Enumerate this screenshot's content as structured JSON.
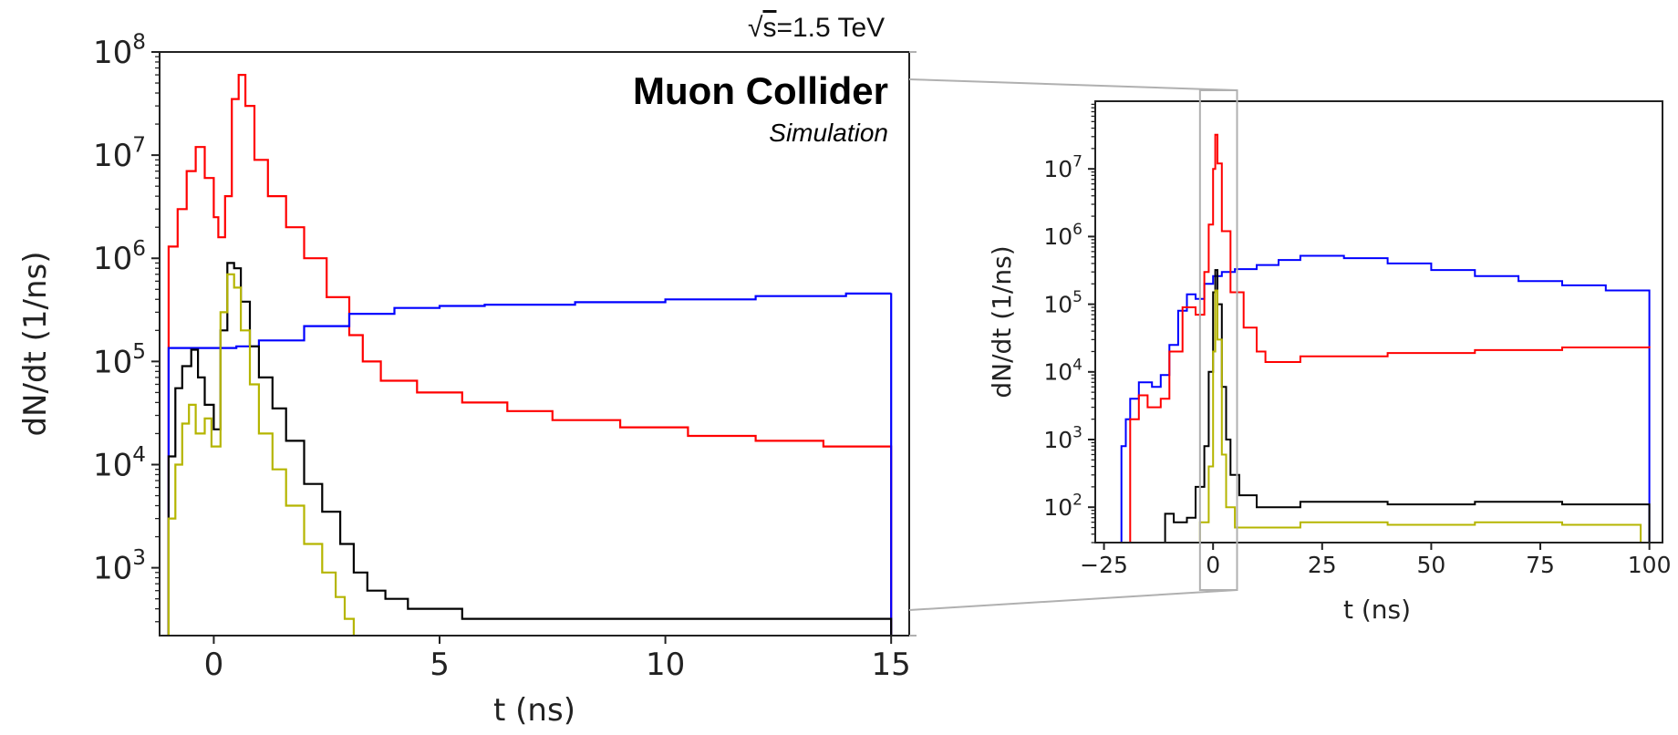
{
  "header": {
    "energy_prefix": "√",
    "energy_s": "s",
    "energy_value": "=1.5 TeV",
    "title": "Muon Collider",
    "subtitle": "Simulation"
  },
  "colors": {
    "red": "#ff0000",
    "blue": "#0000ff",
    "black": "#000000",
    "yellow": "#b5b500",
    "zoom_box": "#b0b0b0"
  },
  "chart_data": [
    {
      "type": "line",
      "panel": "left",
      "xlabel": "t (ns)",
      "ylabel": "dN/dt (1/ns)",
      "yscale": "log",
      "xlim": [
        -1.2,
        15.4
      ],
      "ylim": [
        220,
        100000000
      ],
      "xticks": [
        0,
        5,
        10,
        15
      ],
      "xtick_labels": [
        "0",
        "5",
        "10",
        "15"
      ],
      "yticks": [
        1000,
        10000,
        100000,
        1000000,
        10000000,
        100000000
      ],
      "ytick_labels": [
        {
          "base": "10",
          "exp": "3"
        },
        {
          "base": "10",
          "exp": "4"
        },
        {
          "base": "10",
          "exp": "5"
        },
        {
          "base": "10",
          "exp": "6"
        },
        {
          "base": "10",
          "exp": "7"
        },
        {
          "base": "10",
          "exp": "8"
        }
      ],
      "series": [
        {
          "name": "red",
          "color": "red",
          "points": [
            [
              -1,
              220
            ],
            [
              -1,
              1300000
            ],
            [
              -0.8,
              3000000
            ],
            [
              -0.6,
              7000000
            ],
            [
              -0.4,
              12000000
            ],
            [
              -0.2,
              6000000
            ],
            [
              0,
              2500000
            ],
            [
              0.1,
              1600000
            ],
            [
              0.25,
              4000000
            ],
            [
              0.4,
              35000000
            ],
            [
              0.55,
              60000000
            ],
            [
              0.7,
              30000000
            ],
            [
              0.9,
              9000000
            ],
            [
              1.2,
              4000000
            ],
            [
              1.6,
              2000000
            ],
            [
              2.0,
              1000000
            ],
            [
              2.5,
              420000
            ],
            [
              3.0,
              180000
            ],
            [
              3.3,
              100000
            ],
            [
              3.7,
              65000
            ],
            [
              4.5,
              50000
            ],
            [
              5.5,
              40000
            ],
            [
              6.5,
              33000
            ],
            [
              7.5,
              27000
            ],
            [
              9,
              23000
            ],
            [
              10.5,
              19000
            ],
            [
              12,
              17000
            ],
            [
              13.5,
              15000
            ],
            [
              15,
              14000
            ],
            [
              15,
              220
            ]
          ]
        },
        {
          "name": "blue",
          "color": "blue",
          "points": [
            [
              -1,
              220
            ],
            [
              -1,
              10000
            ],
            [
              -1,
              135000
            ],
            [
              0,
              135000
            ],
            [
              0.5,
              140000
            ],
            [
              1,
              160000
            ],
            [
              2,
              220000
            ],
            [
              3,
              290000
            ],
            [
              4,
              330000
            ],
            [
              5,
              345000
            ],
            [
              6,
              355000
            ],
            [
              8,
              375000
            ],
            [
              10,
              400000
            ],
            [
              12,
              430000
            ],
            [
              14,
              455000
            ],
            [
              15,
              460000
            ],
            [
              15,
              220
            ]
          ]
        },
        {
          "name": "black",
          "color": "black",
          "points": [
            [
              -1,
              220
            ],
            [
              -1,
              12000
            ],
            [
              -0.85,
              55000
            ],
            [
              -0.7,
              90000
            ],
            [
              -0.5,
              130000
            ],
            [
              -0.35,
              70000
            ],
            [
              -0.2,
              38000
            ],
            [
              0,
              22000
            ],
            [
              0.15,
              200000
            ],
            [
              0.3,
              900000
            ],
            [
              0.45,
              800000
            ],
            [
              0.6,
              380000
            ],
            [
              0.8,
              140000
            ],
            [
              1.0,
              70000
            ],
            [
              1.3,
              35000
            ],
            [
              1.6,
              17000
            ],
            [
              2.0,
              6500
            ],
            [
              2.4,
              3500
            ],
            [
              2.8,
              1700
            ],
            [
              3.1,
              900
            ],
            [
              3.4,
              600
            ],
            [
              3.8,
              500
            ],
            [
              4.3,
              400
            ],
            [
              5.5,
              320
            ],
            [
              15,
              300
            ],
            [
              15,
              220
            ]
          ]
        },
        {
          "name": "yellow",
          "color": "yellow",
          "points": [
            [
              -1,
              220
            ],
            [
              -1,
              3000
            ],
            [
              -0.85,
              10000
            ],
            [
              -0.7,
              25000
            ],
            [
              -0.55,
              38000
            ],
            [
              -0.4,
              20000
            ],
            [
              -0.2,
              28000
            ],
            [
              -0.05,
              15000
            ],
            [
              0.15,
              300000
            ],
            [
              0.3,
              700000
            ],
            [
              0.45,
              520000
            ],
            [
              0.6,
              200000
            ],
            [
              0.8,
              60000
            ],
            [
              1.0,
              20000
            ],
            [
              1.3,
              9000
            ],
            [
              1.6,
              4000
            ],
            [
              2.0,
              1700
            ],
            [
              2.4,
              900
            ],
            [
              2.7,
              520
            ],
            [
              2.9,
              320
            ],
            [
              3.1,
              220
            ]
          ]
        }
      ]
    },
    {
      "type": "line",
      "panel": "right",
      "xlabel": "t (ns)",
      "ylabel": "dN/dt (1/ns)",
      "yscale": "log",
      "xlim": [
        -27,
        103
      ],
      "ylim": [
        30,
        100000000
      ],
      "xticks": [
        -25,
        0,
        25,
        50,
        75,
        100
      ],
      "xtick_labels": [
        "−25",
        "0",
        "25",
        "50",
        "75",
        "100"
      ],
      "yticks": [
        100,
        1000,
        10000,
        100000,
        1000000,
        10000000
      ],
      "ytick_labels": [
        {
          "base": "10",
          "exp": "2"
        },
        {
          "base": "10",
          "exp": "3"
        },
        {
          "base": "10",
          "exp": "4"
        },
        {
          "base": "10",
          "exp": "5"
        },
        {
          "base": "10",
          "exp": "6"
        },
        {
          "base": "10",
          "exp": "7"
        }
      ],
      "zoom_region": [
        -3,
        5.5
      ],
      "series": [
        {
          "name": "blue",
          "color": "blue",
          "points": [
            [
              -21,
              30
            ],
            [
              -21,
              800
            ],
            [
              -20,
              2000
            ],
            [
              -19,
              4000
            ],
            [
              -17,
              7000
            ],
            [
              -14,
              6000
            ],
            [
              -12,
              9000
            ],
            [
              -10,
              25000
            ],
            [
              -8,
              80000
            ],
            [
              -6,
              140000
            ],
            [
              -4,
              120000
            ],
            [
              -2,
              200000
            ],
            [
              0,
              260000
            ],
            [
              2,
              300000
            ],
            [
              5,
              330000
            ],
            [
              10,
              380000
            ],
            [
              15,
              450000
            ],
            [
              20,
              520000
            ],
            [
              25,
              520000
            ],
            [
              30,
              480000
            ],
            [
              40,
              400000
            ],
            [
              50,
              320000
            ],
            [
              60,
              260000
            ],
            [
              70,
              220000
            ],
            [
              80,
              190000
            ],
            [
              90,
              160000
            ],
            [
              100,
              140000
            ],
            [
              100,
              30
            ]
          ]
        },
        {
          "name": "red",
          "color": "red",
          "points": [
            [
              -20,
              30
            ],
            [
              -19,
              2000
            ],
            [
              -17,
              4500
            ],
            [
              -15,
              3000
            ],
            [
              -12,
              4000
            ],
            [
              -10,
              20000
            ],
            [
              -7,
              90000
            ],
            [
              -4,
              70000
            ],
            [
              -2,
              300000
            ],
            [
              -1,
              1500000
            ],
            [
              0,
              10000000
            ],
            [
              0.5,
              32000000
            ],
            [
              1,
              12000000
            ],
            [
              2,
              1200000
            ],
            [
              4,
              150000
            ],
            [
              7,
              45000
            ],
            [
              10,
              20000
            ],
            [
              12,
              14000
            ],
            [
              20,
              17000
            ],
            [
              40,
              19000
            ],
            [
              60,
              21000
            ],
            [
              80,
              23000
            ],
            [
              100,
              24000
            ]
          ]
        },
        {
          "name": "black",
          "color": "black",
          "points": [
            [
              -12,
              30
            ],
            [
              -11,
              80
            ],
            [
              -9,
              60
            ],
            [
              -6,
              70
            ],
            [
              -4,
              200
            ],
            [
              -2,
              800
            ],
            [
              -1,
              10000
            ],
            [
              0,
              150000
            ],
            [
              0.5,
              320000
            ],
            [
              1,
              100000
            ],
            [
              2,
              6000
            ],
            [
              3,
              1000
            ],
            [
              4,
              300
            ],
            [
              6,
              150
            ],
            [
              10,
              100
            ],
            [
              20,
              120
            ],
            [
              40,
              110
            ],
            [
              60,
              120
            ],
            [
              80,
              110
            ],
            [
              100,
              100
            ],
            [
              100,
              30
            ]
          ]
        },
        {
          "name": "yellow",
          "color": "yellow",
          "points": [
            [
              -5,
              30
            ],
            [
              -3,
              60
            ],
            [
              -1,
              400
            ],
            [
              0,
              20000
            ],
            [
              0.5,
              160000
            ],
            [
              1,
              30000
            ],
            [
              2,
              600
            ],
            [
              3,
              100
            ],
            [
              5,
              50
            ],
            [
              20,
              60
            ],
            [
              40,
              55
            ],
            [
              60,
              60
            ],
            [
              80,
              55
            ],
            [
              98,
              50
            ],
            [
              98,
              30
            ]
          ]
        }
      ]
    }
  ]
}
